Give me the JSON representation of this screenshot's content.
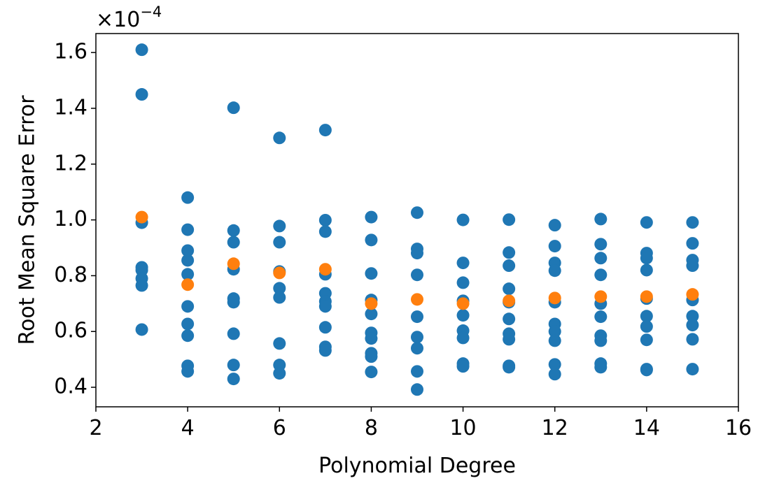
{
  "chart_data": {
    "type": "scatter",
    "x_label": "Polynomial Degree",
    "y_label": "Root Mean Square Error",
    "y_scale": {
      "base": "×10",
      "exponent": "−4"
    },
    "xlim": [
      2,
      16
    ],
    "ylim": [
      0.33,
      1.668
    ],
    "xticks": [
      2,
      4,
      6,
      8,
      10,
      12,
      14,
      16
    ],
    "yticks": [
      0.4,
      0.6,
      0.8,
      {
        "value": 1,
        "label": "1.0"
      },
      1.2,
      1.4,
      1.6
    ],
    "grid": false,
    "series": [
      {
        "color": "#1f77b4",
        "x": [
          3,
          3,
          3,
          3,
          3,
          3,
          3,
          3,
          4,
          4,
          4,
          4,
          4,
          4,
          4,
          4,
          4,
          4,
          5,
          5,
          5,
          5,
          5,
          5,
          5,
          5,
          5,
          6,
          6,
          6,
          6,
          6,
          6,
          6,
          6,
          6,
          7,
          7,
          7,
          7,
          7,
          7,
          7,
          7,
          7,
          7,
          8,
          8,
          8,
          8,
          8,
          8,
          8,
          8,
          8,
          8,
          9,
          9,
          9,
          9,
          9,
          9,
          9,
          9,
          9,
          10,
          10,
          10,
          10,
          10,
          10,
          10,
          10,
          10,
          11,
          11,
          11,
          11,
          11,
          11,
          11,
          11,
          11,
          11,
          12,
          12,
          12,
          12,
          12,
          12,
          12,
          12,
          12,
          12,
          13,
          13,
          13,
          13,
          13,
          13,
          13,
          13,
          13,
          13,
          14,
          14,
          14,
          14,
          14,
          14,
          14,
          14,
          14,
          14,
          15,
          15,
          15,
          15,
          15,
          15,
          15,
          15,
          15
        ],
        "values": [
          1.61,
          1.45,
          0.99,
          0.83,
          0.82,
          0.79,
          0.765,
          0.607,
          1.08,
          0.965,
          0.89,
          0.855,
          0.805,
          0.69,
          0.627,
          0.585,
          0.477,
          0.457,
          1.402,
          0.962,
          0.92,
          0.823,
          0.718,
          0.705,
          0.592,
          0.48,
          0.43,
          1.294,
          0.978,
          0.92,
          0.815,
          0.755,
          0.722,
          0.557,
          0.48,
          0.45,
          1.322,
          0.999,
          0.958,
          0.805,
          0.737,
          0.708,
          0.69,
          0.615,
          0.545,
          0.532,
          1.01,
          0.928,
          0.808,
          0.713,
          0.663,
          0.595,
          0.575,
          0.522,
          0.51,
          0.455,
          1.026,
          0.896,
          0.881,
          0.803,
          0.653,
          0.58,
          0.54,
          0.457,
          0.392,
          1.0,
          0.846,
          0.775,
          0.71,
          0.658,
          0.603,
          0.577,
          0.485,
          0.475,
          1.001,
          0.883,
          0.836,
          0.753,
          0.705,
          0.645,
          0.592,
          0.572,
          0.477,
          0.472,
          0.981,
          0.906,
          0.846,
          0.818,
          0.705,
          0.627,
          0.6,
          0.567,
          0.482,
          0.447,
          1.003,
          0.913,
          0.863,
          0.803,
          0.7,
          0.653,
          0.585,
          0.567,
          0.485,
          0.472,
          0.991,
          0.881,
          0.863,
          0.82,
          0.718,
          0.655,
          0.618,
          0.57,
          0.465,
          0.462,
          0.991,
          0.916,
          0.856,
          0.836,
          0.713,
          0.655,
          0.623,
          0.572,
          0.465
        ]
      },
      {
        "color": "#ff7f0e",
        "x": [
          3,
          4,
          5,
          6,
          7,
          8,
          9,
          10,
          11,
          12,
          13,
          14,
          15
        ],
        "values": [
          1.01,
          0.768,
          0.843,
          0.81,
          0.823,
          0.7,
          0.715,
          0.7,
          0.71,
          0.72,
          0.725,
          0.725,
          0.733
        ]
      }
    ]
  }
}
